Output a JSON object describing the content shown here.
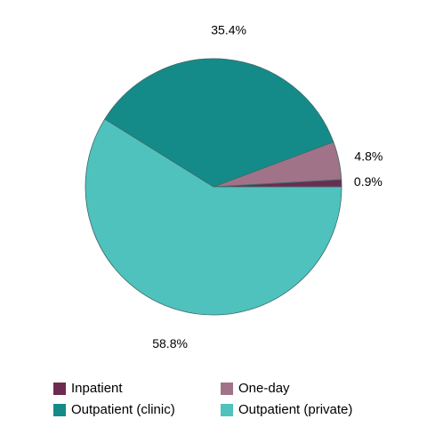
{
  "chart_data": {
    "type": "pie",
    "title": "",
    "slices": [
      {
        "label": "Inpatient",
        "value": 0.9,
        "display": "0.9%",
        "color": "#6d2b52"
      },
      {
        "label": "One-day",
        "value": 4.8,
        "display": "4.8%",
        "color": "#a07388"
      },
      {
        "label": "Outpatient (clinic)",
        "value": 35.4,
        "display": "35.4%",
        "color": "#148b89"
      },
      {
        "label": "Outpatient (private)",
        "value": 58.8,
        "display": "58.8%",
        "color": "#4fc2bd"
      }
    ],
    "legend": {
      "placement": "bottom",
      "entries": [
        "Inpatient",
        "One-day",
        "Outpatient (clinic)",
        "Outpatient (private)"
      ]
    },
    "slice_border_color": "#3d6b6a",
    "start": "3 o'clock, counter-clockwise"
  }
}
